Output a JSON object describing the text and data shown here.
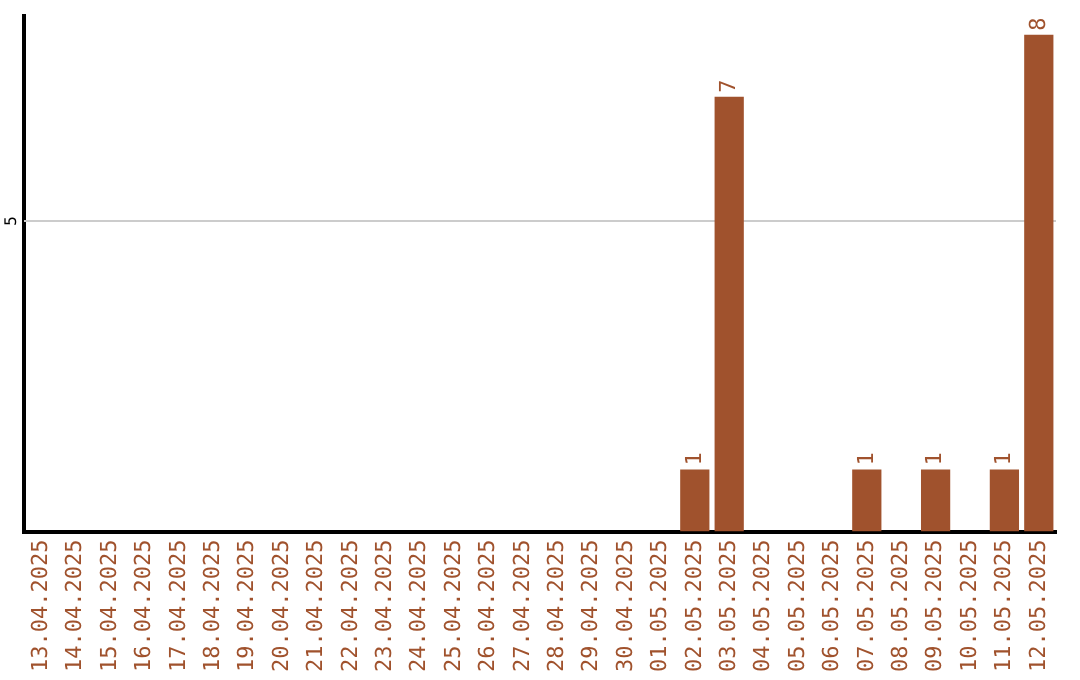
{
  "chart_data": {
    "type": "bar",
    "categories": [
      "13.04.2025",
      "14.04.2025",
      "15.04.2025",
      "16.04.2025",
      "17.04.2025",
      "18.04.2025",
      "19.04.2025",
      "20.04.2025",
      "21.04.2025",
      "22.04.2025",
      "23.04.2025",
      "24.04.2025",
      "25.04.2025",
      "26.04.2025",
      "27.04.2025",
      "28.04.2025",
      "29.04.2025",
      "30.04.2025",
      "01.05.2025",
      "02.05.2025",
      "03.05.2025",
      "04.05.2025",
      "05.05.2025",
      "06.05.2025",
      "07.05.2025",
      "08.05.2025",
      "09.05.2025",
      "10.05.2025",
      "11.05.2025",
      "12.05.2025"
    ],
    "values": [
      null,
      null,
      null,
      null,
      null,
      null,
      null,
      null,
      null,
      null,
      null,
      null,
      null,
      null,
      null,
      null,
      null,
      null,
      null,
      1,
      7,
      null,
      null,
      null,
      1,
      null,
      1,
      null,
      1,
      8
    ],
    "data_labels": true,
    "color": "#a0522d",
    "ylim": [
      0,
      8.3
    ],
    "ref_lines": [
      {
        "axis": "y",
        "value": 5,
        "label": "5",
        "color": "#cccccc"
      }
    ],
    "legend": false
  }
}
